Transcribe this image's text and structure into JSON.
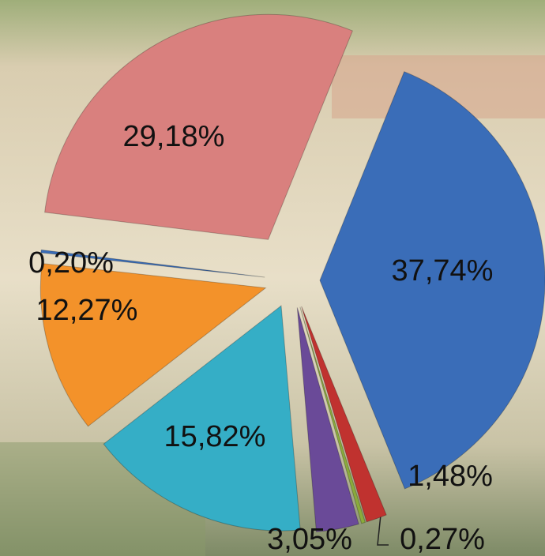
{
  "chart_data": {
    "type": "pie",
    "categories": [
      null,
      null,
      null,
      null,
      null,
      null,
      null,
      null
    ],
    "values": [
      37.74,
      1.48,
      0.27,
      3.05,
      15.82,
      12.27,
      0.2,
      29.18
    ],
    "value_labels": [
      "37,74%",
      "1,48%",
      "0,27%",
      "3,05%",
      "15,82%",
      "12,27%",
      "0,20%",
      "29,18%"
    ],
    "colors": [
      "#3a6db8",
      "#c0322f",
      "#8aab3c",
      "#6a4a98",
      "#35aec6",
      "#f3922a",
      "#3a6db8",
      "#d9807e"
    ]
  }
}
